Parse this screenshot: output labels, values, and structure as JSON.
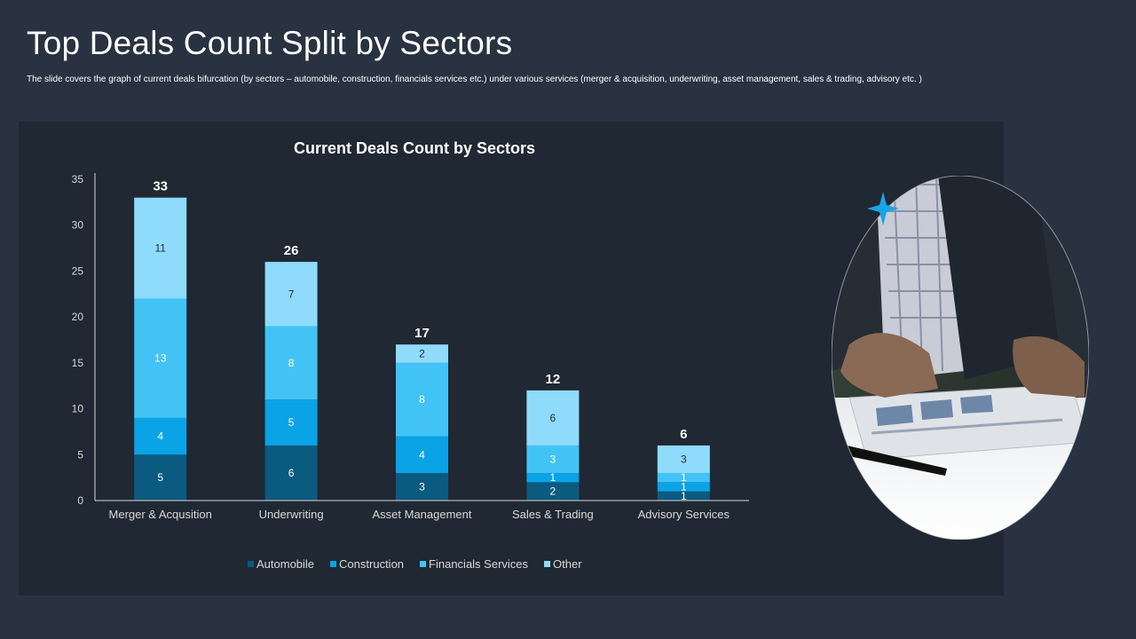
{
  "slide": {
    "title": "Top Deals Count Split by Sectors",
    "subtitle": "The slide covers the graph of current deals bifurcation (by sectors – automobile,  construction, financials services etc.) under various services (merger & acquisition, underwriting, asset management, sales & trading, advisory etc. )"
  },
  "colors": {
    "background": "#283240",
    "panel": "#1f2833",
    "star": "#1aa3e8"
  },
  "photo": {
    "description_icon": "business-tablet-photo"
  },
  "chart_data": {
    "type": "bar",
    "stacked": true,
    "title": "Current Deals Count by Sectors",
    "categories": [
      "Merger & Acqusition",
      "Underwriting",
      "Asset Management",
      "Sales & Trading",
      "Advisory Services"
    ],
    "series": [
      {
        "name": "Automobile",
        "color": "#0b5a80",
        "values": [
          5,
          6,
          3,
          2,
          1
        ]
      },
      {
        "name": "Construction",
        "color": "#0aa3e6",
        "values": [
          4,
          5,
          4,
          1,
          1
        ]
      },
      {
        "name": "Financials Services",
        "color": "#42c3f5",
        "values": [
          13,
          8,
          8,
          3,
          1
        ]
      },
      {
        "name": "Other",
        "color": "#8fdbfb",
        "values": [
          11,
          7,
          2,
          6,
          3
        ]
      }
    ],
    "totals": [
      33,
      26,
      17,
      12,
      6
    ],
    "ylim": [
      0,
      35
    ],
    "yticks": [
      0,
      5,
      10,
      15,
      20,
      25,
      30,
      35
    ],
    "grid": false,
    "legend": "bottom"
  }
}
